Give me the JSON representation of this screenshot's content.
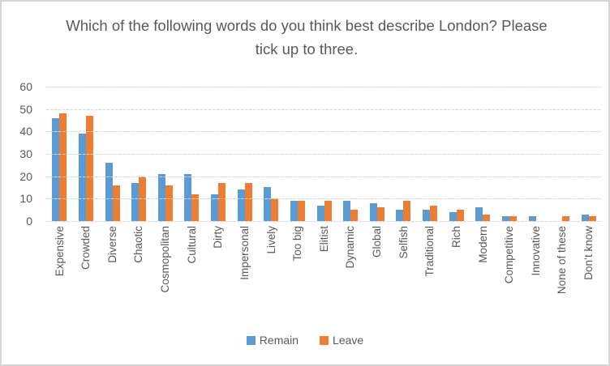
{
  "chart_data": {
    "type": "bar",
    "title": "Which of the following words do you think best describe London? Please tick up to three.",
    "categories": [
      "Expensive",
      "Crowded",
      "Diverse",
      "Chaotic",
      "Cosmopolitan",
      "Cultural",
      "Dirty",
      "Impersonal",
      "Lively",
      "Too big",
      "Elitist",
      "Dynamic",
      "Global",
      "Selfish",
      "Traditional",
      "Rich",
      "Modern",
      "Competitive",
      "Innovative",
      "None of these",
      "Don’t know"
    ],
    "series": [
      {
        "name": "Remain",
        "color": "#5B9BD5",
        "values": [
          46,
          39,
          26,
          17,
          21,
          21,
          12,
          14,
          15,
          9,
          7,
          9,
          8,
          5,
          5,
          4,
          6,
          2,
          2,
          0,
          3
        ]
      },
      {
        "name": "Leave",
        "color": "#ED7D31",
        "values": [
          48,
          47,
          16,
          20,
          16,
          12,
          17,
          17,
          10,
          9,
          9,
          5,
          6,
          9,
          7,
          5,
          3,
          2,
          0,
          2,
          2
        ]
      }
    ],
    "xlabel": "",
    "ylabel": "",
    "ylim": [
      0,
      60
    ],
    "yticks": [
      0,
      10,
      20,
      30,
      40,
      50,
      60
    ],
    "grid": true,
    "legend_position": "bottom"
  },
  "colors": {
    "text": "#595959",
    "gridline": "#D9D9D9",
    "frame_border": "#D6D6D6"
  }
}
